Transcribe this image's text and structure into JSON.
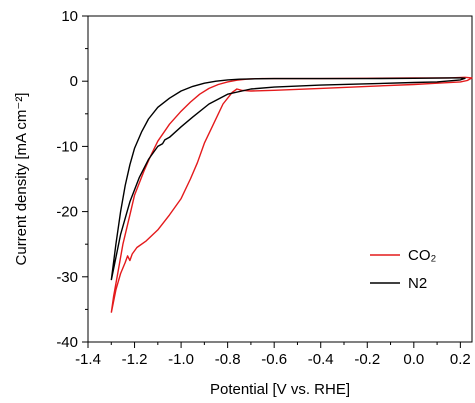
{
  "chart_data": {
    "type": "line",
    "xlabel": "Potential [V vs. RHE]",
    "ylabel": "Current density [mA cm⁻²]",
    "xlim": [
      -1.4,
      0.25
    ],
    "ylim": [
      -40,
      10
    ],
    "xticks": [
      -1.4,
      -1.2,
      -1.0,
      -0.8,
      -0.6,
      -0.4,
      -0.2,
      0.0,
      0.2
    ],
    "xtick_labels": [
      "-1.4",
      "-1.2",
      "-1.0",
      "-0.8",
      "-0.6",
      "-0.4",
      "-0.2",
      "0.0",
      "0.2"
    ],
    "yticks": [
      -40,
      -30,
      -20,
      -10,
      0,
      10
    ],
    "ytick_labels": [
      "-40",
      "-30",
      "-20",
      "-10",
      "0",
      "10"
    ],
    "grid": false,
    "legend_position": "lower-right",
    "series": [
      {
        "name": "CO₂",
        "color": "#e41a1c",
        "x": [
          -1.3,
          -1.29,
          -1.27,
          -1.25,
          -1.22,
          -1.2,
          -1.16,
          -1.13,
          -1.1,
          -1.05,
          -1.0,
          -0.96,
          -0.92,
          -0.88,
          -0.84,
          -0.8,
          -0.76,
          -0.72,
          -0.7,
          -0.65,
          -0.55,
          -0.4,
          -0.2,
          0.0,
          0.15,
          0.22,
          0.25,
          0.23,
          0.2,
          0.1,
          0.0,
          -0.2,
          -0.4,
          -0.6,
          -0.7,
          -0.74,
          -0.76,
          -0.78,
          -0.82,
          -0.86,
          -0.9,
          -0.93,
          -0.96,
          -1.0,
          -1.05,
          -1.1,
          -1.15,
          -1.19,
          -1.21,
          -1.22,
          -1.23,
          -1.24,
          -1.26,
          -1.28,
          -1.3
        ],
        "y": [
          -35.5,
          -33.0,
          -29.0,
          -25.0,
          -20.5,
          -17.5,
          -13.8,
          -11.4,
          -9.2,
          -6.6,
          -4.6,
          -3.2,
          -2.0,
          -1.1,
          -0.5,
          -0.1,
          0.15,
          0.3,
          0.35,
          0.4,
          0.4,
          0.4,
          0.45,
          0.5,
          0.5,
          0.6,
          0.5,
          0.1,
          -0.1,
          -0.3,
          -0.5,
          -0.8,
          -1.1,
          -1.4,
          -1.5,
          -1.4,
          -1.2,
          -1.7,
          -3.5,
          -6.5,
          -9.5,
          -12.5,
          -15.0,
          -18.0,
          -20.5,
          -22.8,
          -24.5,
          -25.5,
          -26.5,
          -27.5,
          -26.8,
          -27.8,
          -29.5,
          -32.0,
          -35.5
        ]
      },
      {
        "name": "N2",
        "color": "#000000",
        "x": [
          -1.3,
          -1.28,
          -1.26,
          -1.24,
          -1.22,
          -1.2,
          -1.17,
          -1.14,
          -1.1,
          -1.05,
          -1.0,
          -0.95,
          -0.9,
          -0.85,
          -0.8,
          -0.75,
          -0.7,
          -0.6,
          -0.4,
          -0.2,
          0.0,
          0.15,
          0.2,
          0.22,
          0.2,
          0.1,
          0.0,
          -0.2,
          -0.4,
          -0.6,
          -0.7,
          -0.8,
          -0.88,
          -0.95,
          -1.0,
          -1.05,
          -1.07,
          -1.08,
          -1.1,
          -1.14,
          -1.18,
          -1.22,
          -1.26,
          -1.3
        ],
        "y": [
          -30.5,
          -25.0,
          -20.0,
          -16.0,
          -12.8,
          -10.3,
          -7.8,
          -5.8,
          -4.0,
          -2.6,
          -1.5,
          -0.8,
          -0.3,
          0.0,
          0.2,
          0.3,
          0.35,
          0.4,
          0.4,
          0.4,
          0.45,
          0.5,
          0.5,
          0.45,
          0.2,
          -0.1,
          -0.2,
          -0.4,
          -0.6,
          -0.9,
          -1.2,
          -2.0,
          -3.5,
          -5.5,
          -7.0,
          -8.6,
          -9.0,
          -9.6,
          -10.0,
          -12.0,
          -14.8,
          -18.5,
          -23.5,
          -30.5
        ]
      }
    ]
  }
}
